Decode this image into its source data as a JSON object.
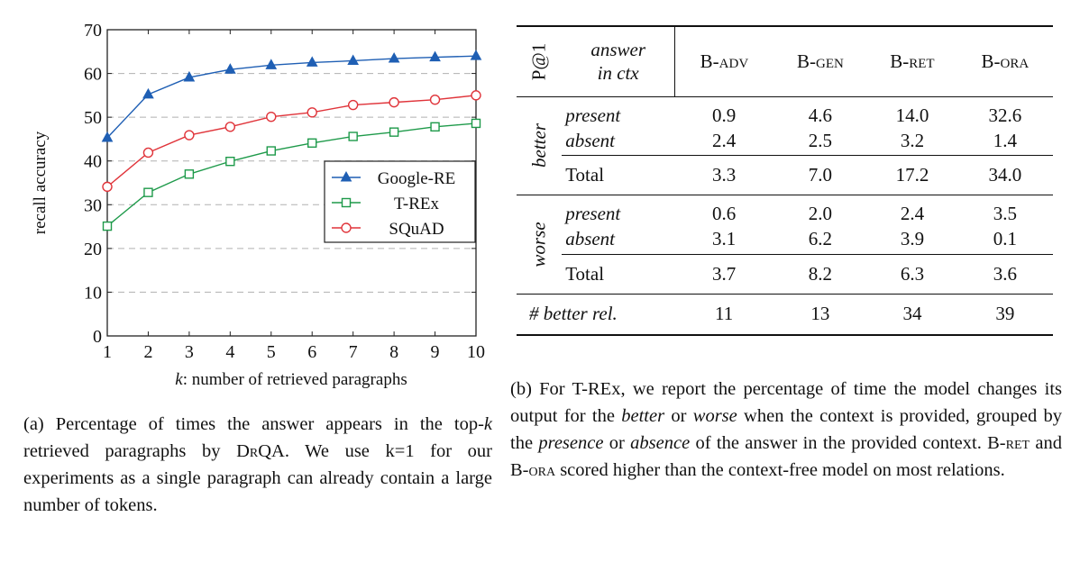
{
  "figure_a": {
    "caption_prefix": "(a) Percentage of times the answer appears in the top-",
    "caption_k": "k",
    "caption_mid": " retrieved paragraphs by ",
    "caption_drqa": "DrQA",
    "caption_suffix": ". We use k=1 for our experiments as a single paragraph can already contain a large number of tokens."
  },
  "figure_b": {
    "caption_1": "(b) For T-REx, we report the percentage of time the model changes its output for the ",
    "caption_better": "better",
    "caption_2": " or ",
    "caption_worse": "worse",
    "caption_3": " when the context is provided, grouped by the ",
    "caption_presence": "presence",
    "caption_4": " or ",
    "caption_absence": "absence",
    "caption_5": " of the answer in the provided context. B-",
    "caption_ret": "ret",
    "caption_6": " and B-",
    "caption_ora": "ora",
    "caption_7": " scored higher than the context-free model on most relations.",
    "table": {
      "corner_label": "P@1",
      "answer_label_1": "answer",
      "answer_label_2": "in ctx",
      "columns": [
        "B-adv",
        "B-gen",
        "B-ret",
        "B-ora"
      ],
      "groups": [
        {
          "label": "better",
          "rows": [
            {
              "label": "present",
              "values": [
                "0.9",
                "4.6",
                "14.0",
                "32.6"
              ]
            },
            {
              "label": "absent",
              "values": [
                "2.4",
                "2.5",
                "3.2",
                "1.4"
              ]
            }
          ],
          "total": {
            "label": "Total",
            "values": [
              "3.3",
              "7.0",
              "17.2",
              "34.0"
            ]
          }
        },
        {
          "label": "worse",
          "rows": [
            {
              "label": "present",
              "values": [
                "0.6",
                "2.0",
                "2.4",
                "3.5"
              ]
            },
            {
              "label": "absent",
              "values": [
                "3.1",
                "6.2",
                "3.9",
                "0.1"
              ]
            }
          ],
          "total": {
            "label": "Total",
            "values": [
              "3.7",
              "8.2",
              "6.3",
              "3.6"
            ]
          }
        }
      ],
      "footer": {
        "label_hash": "#",
        "label": "better rel.",
        "values": [
          "11",
          "13",
          "34",
          "39"
        ]
      }
    }
  },
  "chart_data": {
    "type": "line",
    "title": "",
    "xlabel_k": "k",
    "xlabel": ": number of retrieved paragraphs",
    "ylabel": "recall accuracy",
    "x": [
      1,
      2,
      3,
      4,
      5,
      6,
      7,
      8,
      9,
      10
    ],
    "xlim": [
      1,
      10
    ],
    "ylim": [
      0,
      70
    ],
    "yticks": [
      0,
      10,
      20,
      30,
      40,
      50,
      60,
      70
    ],
    "grid": "horizontal dashed",
    "legend_position": "center right",
    "series": [
      {
        "name": "Google-RE",
        "color": "#1f5fb4",
        "marker": "triangle",
        "values": [
          45.3,
          55.2,
          59.1,
          60.9,
          61.9,
          62.5,
          62.9,
          63.4,
          63.7,
          64.0
        ]
      },
      {
        "name": "T-REx",
        "color": "#1e9a4a",
        "marker": "square",
        "values": [
          25.1,
          32.8,
          37.0,
          39.9,
          42.3,
          44.1,
          45.6,
          46.6,
          47.8,
          48.6
        ]
      },
      {
        "name": "SQuAD",
        "color": "#e0343a",
        "marker": "circle",
        "values": [
          34.1,
          41.9,
          45.9,
          47.8,
          50.1,
          51.1,
          52.8,
          53.4,
          54.0,
          55.0
        ]
      }
    ]
  }
}
